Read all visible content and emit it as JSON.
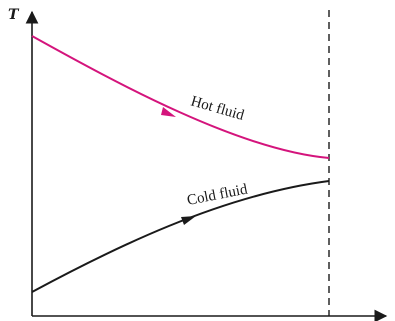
{
  "axes": {
    "y_label": "T"
  },
  "hot_fluid": {
    "label": "Hot fluid",
    "color": "#d4147c"
  },
  "cold_fluid": {
    "label": "Cold fluid",
    "color": "#1a1a1a"
  },
  "colors": {
    "axis": "#1a1a1a",
    "boundary_line": "#1a1a1a"
  }
}
